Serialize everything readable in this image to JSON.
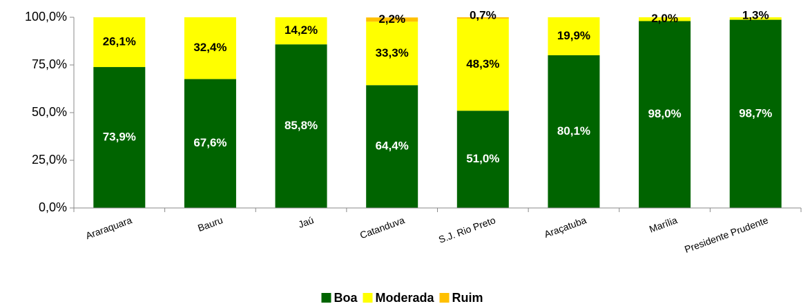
{
  "chart_data": {
    "type": "stacked_bar",
    "categories": [
      "Araraquara",
      "Bauru",
      "Jaú",
      "Catanduva",
      "S.J. Rio Preto",
      "Araçatuba",
      "Marília",
      "Presidente Prudente"
    ],
    "series": [
      {
        "name": "Boa",
        "color": "#006400",
        "values": [
          73.9,
          67.6,
          85.8,
          64.4,
          51.0,
          80.1,
          98.0,
          98.7
        ],
        "value_labels": [
          "73,9%",
          "67,6%",
          "85,8%",
          "64,4%",
          "51,0%",
          "80,1%",
          "98,0%",
          "98,7%"
        ]
      },
      {
        "name": "Moderada",
        "color": "#ffff00",
        "values": [
          26.1,
          32.4,
          14.2,
          33.3,
          48.3,
          19.9,
          2.0,
          1.3
        ],
        "value_labels": [
          "26,1%",
          "32,4%",
          "14,2%",
          "33,3%",
          "48,3%",
          "19,9%",
          "2,0%",
          "1,3%"
        ]
      },
      {
        "name": "Ruim",
        "color": "#ffc000",
        "values": [
          null,
          null,
          null,
          2.2,
          0.7,
          null,
          null,
          null
        ],
        "value_labels": [
          null,
          null,
          null,
          "2,2%",
          "0,7%",
          null,
          null,
          null
        ]
      }
    ],
    "ylim": [
      0,
      100
    ],
    "yticks": [
      {
        "value": 0,
        "label": "0,0%"
      },
      {
        "value": 25,
        "label": "25,0%"
      },
      {
        "value": 50,
        "label": "50,0%"
      },
      {
        "value": 75,
        "label": "75,0%"
      },
      {
        "value": 100,
        "label": "100,0%"
      }
    ],
    "legend": "bottom"
  }
}
